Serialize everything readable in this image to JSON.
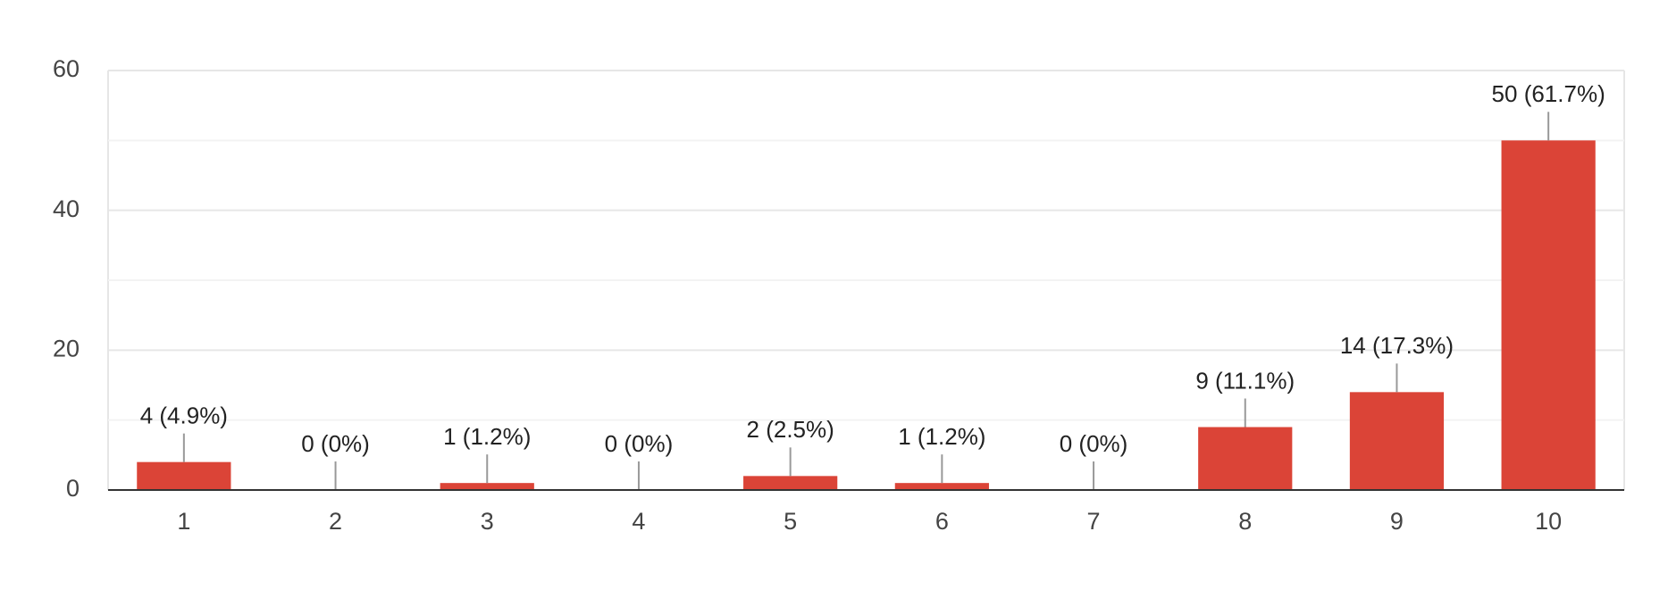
{
  "chart_data": {
    "type": "bar",
    "categories": [
      "1",
      "2",
      "3",
      "4",
      "5",
      "6",
      "7",
      "8",
      "9",
      "10"
    ],
    "values": [
      4,
      0,
      1,
      0,
      2,
      1,
      0,
      9,
      14,
      50
    ],
    "value_labels": [
      "4 (4.9%)",
      "0 (0%)",
      "1 (1.2%)",
      "0 (0%)",
      "2 (2.5%)",
      "1 (1.2%)",
      "0 (0%)",
      "9 (11.1%)",
      "14 (17.3%)",
      "50 (61.7%)"
    ],
    "color": "#db4437",
    "ylim": [
      0,
      60
    ],
    "yticks": [
      0,
      20,
      40,
      60
    ],
    "minor_yticks": [
      10,
      30,
      50
    ],
    "grid": true
  }
}
